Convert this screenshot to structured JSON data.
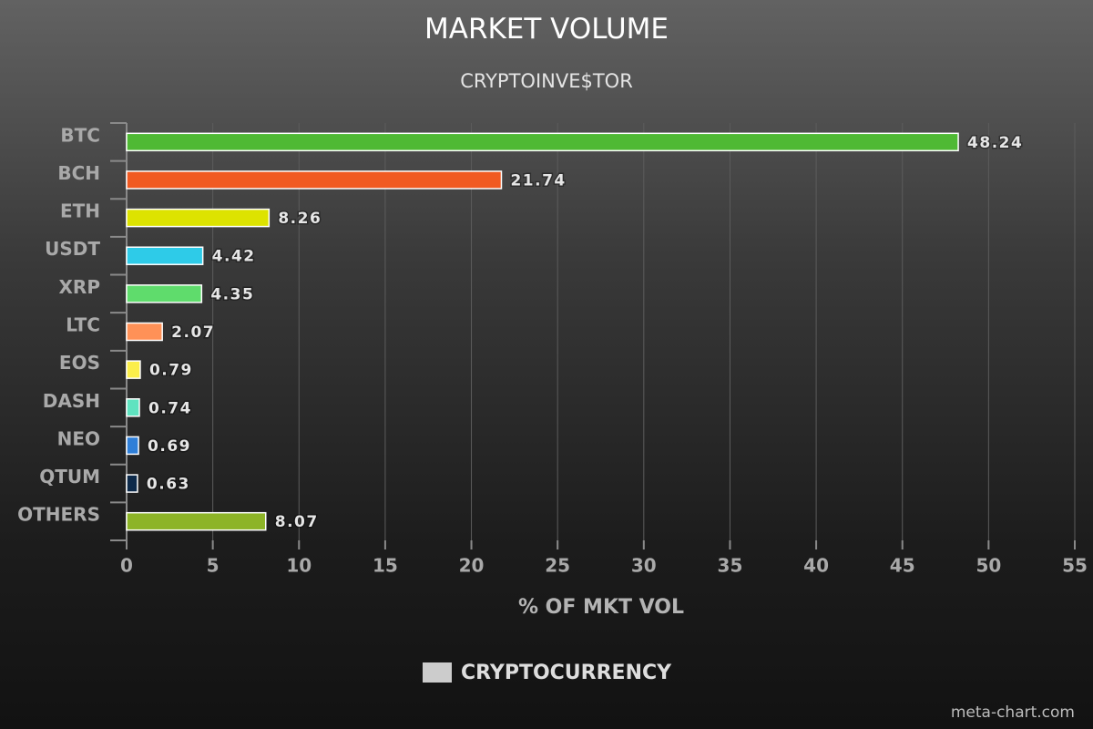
{
  "chart_data": {
    "type": "bar",
    "orientation": "horizontal",
    "title": "MARKET VOLUME",
    "subtitle": "CRYPTOINVE$TOR",
    "xlabel": "% OF MKT VOL",
    "xlim": [
      0,
      55
    ],
    "xticks": [
      "0",
      "5",
      "10",
      "15",
      "20",
      "25",
      "30",
      "35",
      "40",
      "45",
      "50",
      "55"
    ],
    "grid": true,
    "legend": {
      "label": "CRYPTOCURRENCY",
      "position": "bottom-center",
      "color": "#cccccc"
    },
    "categories": [
      "BTC",
      "BCH",
      "ETH",
      "USDT",
      "XRP",
      "LTC",
      "EOS",
      "DASH",
      "NEO",
      "QTUM",
      "OTHERS"
    ],
    "values": [
      48.24,
      21.74,
      8.26,
      4.42,
      4.35,
      2.07,
      0.79,
      0.74,
      0.69,
      0.63,
      8.07
    ],
    "value_labels": [
      "48.24",
      "21.74",
      "8.26",
      "4.42",
      "4.35",
      "2.07",
      "0.79",
      "0.74",
      "0.69",
      "0.63",
      "8.07"
    ],
    "colors": [
      "#4fb934",
      "#f15a22",
      "#dde300",
      "#2ecbe8",
      "#5fdc6c",
      "#ff9157",
      "#fbee4a",
      "#5fe3c0",
      "#2f7fd8",
      "#0d2a4a",
      "#8db427"
    ]
  },
  "credit": "meta-chart.com"
}
